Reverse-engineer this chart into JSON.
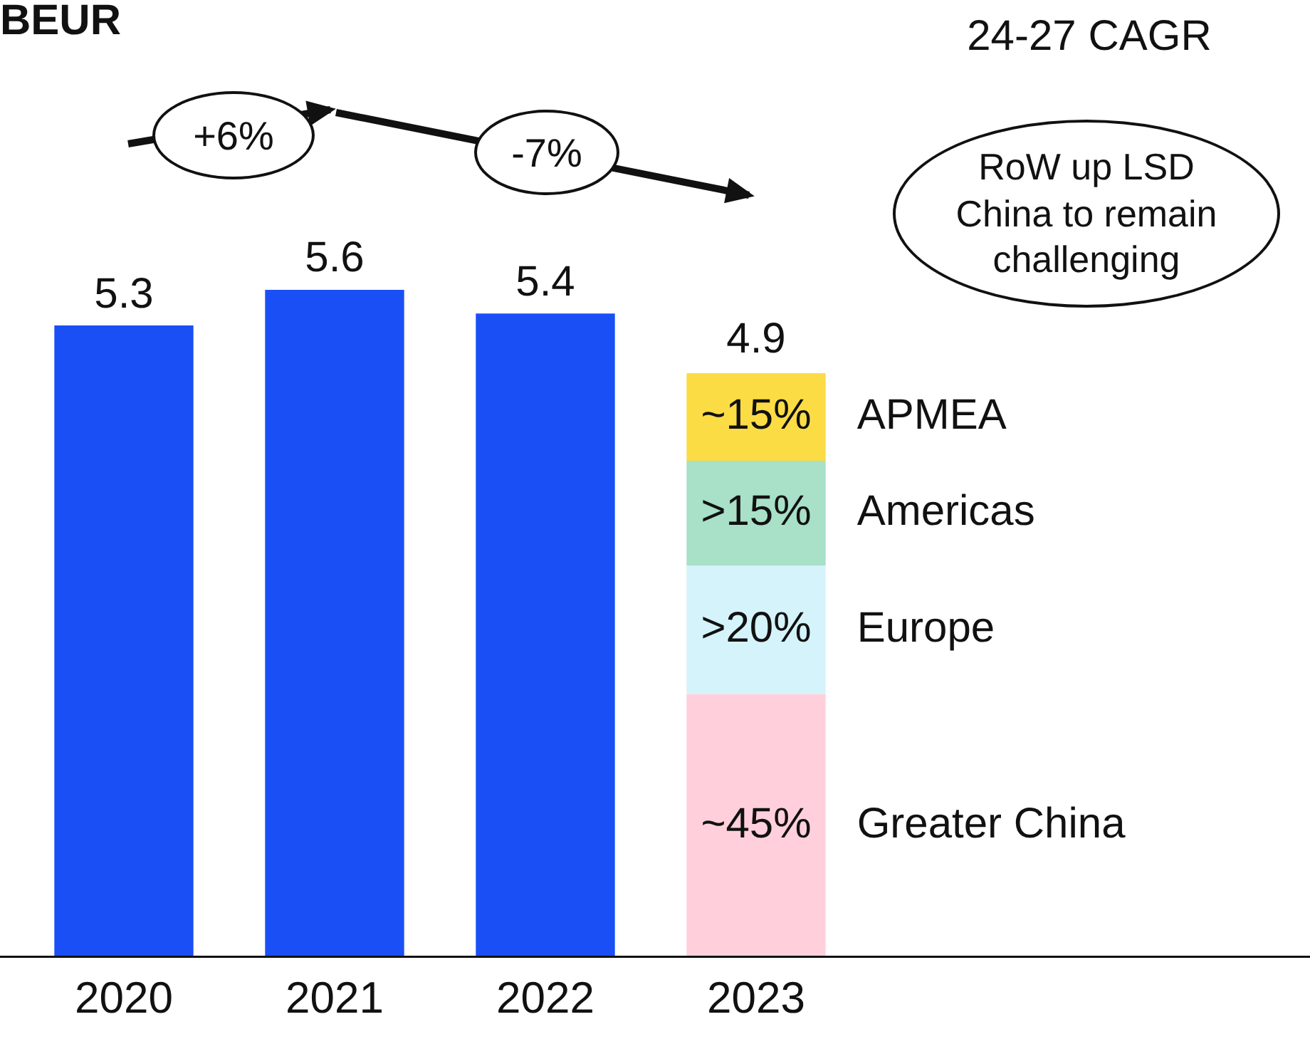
{
  "chart_data": {
    "type": "bar",
    "categories": [
      "2020",
      "2021",
      "2022",
      "2023"
    ],
    "stacked": true,
    "grid": false,
    "legend": false,
    "tick_labels": "x",
    "series": [
      {
        "color": "#1a4ff5",
        "values": [
          5.3,
          5.6,
          5.4,
          null
        ],
        "value_labels": [
          "5.3",
          "5.6",
          "5.4",
          null
        ]
      },
      {
        "name": "Greater China",
        "color": "#ffd0dc",
        "axis": "y2",
        "values": [
          null,
          null,
          null,
          45
        ],
        "value_labels": [
          null,
          null,
          null,
          "~45%"
        ]
      },
      {
        "name": "Europe",
        "color": "#d5f3fb",
        "axis": "y2",
        "values": [
          null,
          null,
          null,
          22
        ],
        "value_labels": [
          null,
          null,
          null,
          ">20%"
        ]
      },
      {
        "name": "Americas",
        "color": "#a8e0c8",
        "axis": "y2",
        "values": [
          null,
          null,
          null,
          18
        ],
        "value_labels": [
          null,
          null,
          null,
          ">15%"
        ]
      },
      {
        "name": "APMEA",
        "color": "#fbdc45",
        "axis": "y2",
        "values": [
          null,
          null,
          null,
          15
        ],
        "value_labels": [
          null,
          null,
          null,
          "~15%"
        ]
      }
    ],
    "y2lim": [
      0,
      114.3
    ],
    "annotations": [
      "BEUR",
      "24-27 CAGR",
      "+6%",
      "-7%",
      "RoW up LSD\nChina to remain\nchallenging",
      {
        "text": "4.9",
        "x": "2023",
        "y": 4.9
      }
    ]
  }
}
